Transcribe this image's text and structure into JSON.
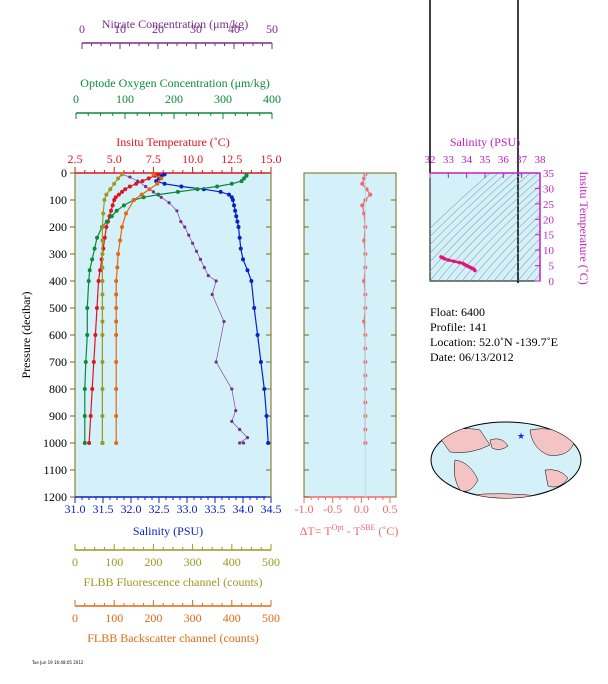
{
  "colors": {
    "nitrate": "#7b2d8e",
    "oxygen": "#0a8a3a",
    "temperature": "#e0141e",
    "salinity": "#0a20c8",
    "fluorescence": "#9a9a22",
    "backscatter": "#e06a14",
    "delta": "#f06a6a",
    "plot_bg": "#d4f0f8",
    "frame": "#7a6a14"
  },
  "axes": {
    "nitrate": {
      "label": "Nitrate Concentration (μm/kg)",
      "ticks": [
        "0",
        "10",
        "20",
        "30",
        "40",
        "50"
      ]
    },
    "oxygen": {
      "label": "Optode Oxygen Concentration (μm/kg)",
      "ticks": [
        "0",
        "100",
        "200",
        "300",
        "400"
      ]
    },
    "temperature": {
      "label": "Insitu Temperature (˚C)",
      "ticks": [
        "2.5",
        "5.0",
        "7.5",
        "10.0",
        "12.5",
        "15.0"
      ]
    },
    "salinity": {
      "label": "Salinity (PSU)",
      "ticks": [
        "31.0",
        "31.5",
        "32.0",
        "32.5",
        "33.0",
        "33.5",
        "34.0",
        "34.5"
      ]
    },
    "pressure": {
      "label": "Pressure (decibar)",
      "ticks": [
        "0",
        "100",
        "200",
        "300",
        "400",
        "500",
        "600",
        "700",
        "800",
        "900",
        "1000",
        "1100",
        "1200"
      ]
    },
    "fluorescence": {
      "label": "FLBB Fluorescence channel (counts)",
      "ticks": [
        "0",
        "100",
        "200",
        "300",
        "400",
        "500"
      ]
    },
    "backscatter": {
      "label": "FLBB Backscatter channel (counts)",
      "ticks": [
        "0",
        "100",
        "200",
        "300",
        "400",
        "500"
      ]
    },
    "delta": {
      "label_main": "ΔT= T",
      "sup1": "Opt",
      "label_mid": " - T",
      "sup2": "SBE",
      "label_end": " (˚C)",
      "ticks": [
        "-1.0",
        "-0.5",
        "0.0",
        "0.5"
      ]
    },
    "ts_salinity": {
      "label": "Salinity (PSU)",
      "ticks": [
        "32",
        "33",
        "34",
        "35",
        "36",
        "37",
        "38"
      ]
    },
    "ts_temperature": {
      "label": "Insitu Temperature (˚C)",
      "ticks": [
        "0",
        "5",
        "10",
        "15",
        "20",
        "25",
        "30",
        "35"
      ]
    }
  },
  "info": {
    "float": "Float:  6400",
    "profile": "Profile:  141",
    "location": "Location:  52.0˚N  -139.7˚E",
    "date": "Date:  06/13/2012"
  },
  "footer_text": "Tue Jun 19 16:48:05 2012",
  "chart_data": {
    "type": "scatter",
    "x_units_note": "multiple x-axes sharing pressure (decibar) y-axis",
    "ylim": [
      1200,
      0
    ],
    "series": [
      {
        "name": "Insitu Temperature",
        "xlim": [
          2.5,
          15.0
        ],
        "x": [
          7.8,
          7.6,
          7.2,
          6.8,
          6.4,
          6.0,
          5.7,
          5.5,
          5.3,
          5.1,
          5.0,
          4.9,
          4.8,
          4.7,
          4.6,
          4.5,
          4.4,
          4.3,
          4.2,
          4.1,
          4.0,
          3.9,
          3.8,
          3.7,
          3.6,
          3.5,
          3.4
        ],
        "y": [
          5,
          10,
          20,
          30,
          40,
          50,
          60,
          70,
          80,
          90,
          100,
          120,
          140,
          160,
          180,
          200,
          240,
          280,
          320,
          360,
          400,
          500,
          600,
          700,
          800,
          900,
          1000
        ]
      },
      {
        "name": "Salinity",
        "xlim": [
          31.0,
          34.5
        ],
        "x": [
          32.6,
          32.55,
          32.5,
          32.45,
          32.6,
          32.9,
          33.3,
          33.6,
          33.75,
          33.8,
          33.82,
          33.84,
          33.86,
          33.88,
          33.9,
          33.92,
          33.94,
          33.96,
          34.0,
          34.08,
          34.15,
          34.2,
          34.26,
          34.32,
          34.38,
          34.42,
          34.45
        ],
        "y": [
          5,
          10,
          20,
          30,
          40,
          50,
          60,
          70,
          80,
          90,
          100,
          120,
          140,
          160,
          180,
          200,
          240,
          280,
          320,
          360,
          400,
          500,
          600,
          700,
          800,
          900,
          1000
        ]
      },
      {
        "name": "Optode Oxygen",
        "xlim": [
          0,
          400
        ],
        "x": [
          350,
          350,
          345,
          340,
          320,
          290,
          250,
          210,
          170,
          140,
          120,
          100,
          85,
          75,
          65,
          55,
          45,
          40,
          35,
          30,
          28,
          25,
          25,
          22,
          20,
          20,
          20
        ],
        "y": [
          5,
          10,
          20,
          30,
          40,
          50,
          60,
          70,
          80,
          90,
          100,
          120,
          140,
          160,
          180,
          200,
          240,
          280,
          320,
          360,
          400,
          500,
          600,
          700,
          800,
          900,
          1000
        ]
      },
      {
        "name": "Nitrate",
        "xlim": [
          0,
          50
        ],
        "x": [
          12,
          14,
          16,
          18,
          20,
          22,
          24,
          26,
          27,
          28,
          29,
          30,
          31,
          32,
          33,
          34,
          36,
          35,
          38,
          36,
          40,
          41,
          40,
          42,
          44,
          42,
          43
        ],
        "y": [
          5,
          15,
          30,
          50,
          70,
          90,
          110,
          140,
          180,
          200,
          230,
          260,
          290,
          320,
          350,
          380,
          400,
          450,
          550,
          700,
          800,
          880,
          920,
          950,
          980,
          1000,
          1000
        ]
      },
      {
        "name": "FLBB Fluorescence",
        "xlim": [
          0,
          500
        ],
        "x": [
          120,
          110,
          100,
          90,
          80,
          75,
          72,
          70,
          70,
          70,
          70,
          70,
          70,
          70,
          70,
          70,
          70,
          70,
          70,
          70,
          70,
          70,
          70
        ],
        "y": [
          5,
          20,
          40,
          60,
          80,
          100,
          150,
          200,
          250,
          300,
          350,
          400,
          450,
          500,
          550,
          600,
          700,
          800,
          900,
          1000,
          1000,
          1000,
          1000
        ]
      },
      {
        "name": "FLBB Backscatter",
        "xlim": [
          0,
          500
        ],
        "x": [
          200,
          220,
          210,
          190,
          170,
          150,
          130,
          120,
          115,
          110,
          108,
          105,
          105,
          105,
          105,
          105,
          105,
          105,
          105,
          105
        ],
        "y": [
          5,
          20,
          40,
          60,
          80,
          100,
          150,
          200,
          250,
          300,
          350,
          400,
          450,
          500,
          550,
          600,
          700,
          800,
          900,
          1000
        ]
      },
      {
        "name": "Delta T",
        "xlim": [
          -1.0,
          0.5
        ],
        "x": [
          0.0,
          -0.02,
          -0.05,
          0.02,
          0.08,
          0.0,
          -0.05,
          -0.02,
          0.0,
          -0.02,
          0.0,
          0.0,
          -0.02,
          0.0,
          0.0,
          -0.02,
          0.0,
          0.0,
          0.0,
          0.0,
          0.0,
          0.0,
          0.0,
          0.0,
          0.0,
          0.0
        ],
        "y": [
          5,
          20,
          40,
          60,
          80,
          100,
          120,
          150,
          200,
          250,
          300,
          350,
          400,
          450,
          500,
          550,
          600,
          650,
          700,
          750,
          800,
          850,
          900,
          950,
          1000,
          1000
        ]
      }
    ],
    "ts_diagram": {
      "xlim": [
        32,
        38
      ],
      "ylim": [
        0,
        35
      ],
      "salinity": [
        32.6,
        32.7,
        32.8,
        33.0,
        33.3,
        33.6,
        33.8,
        33.9,
        34.0,
        34.1,
        34.2,
        34.3,
        34.4,
        34.45
      ],
      "temperature": [
        7.8,
        7.5,
        7.2,
        6.8,
        6.4,
        6.0,
        5.7,
        5.3,
        5.0,
        4.7,
        4.4,
        4.1,
        3.8,
        3.4
      ]
    }
  }
}
